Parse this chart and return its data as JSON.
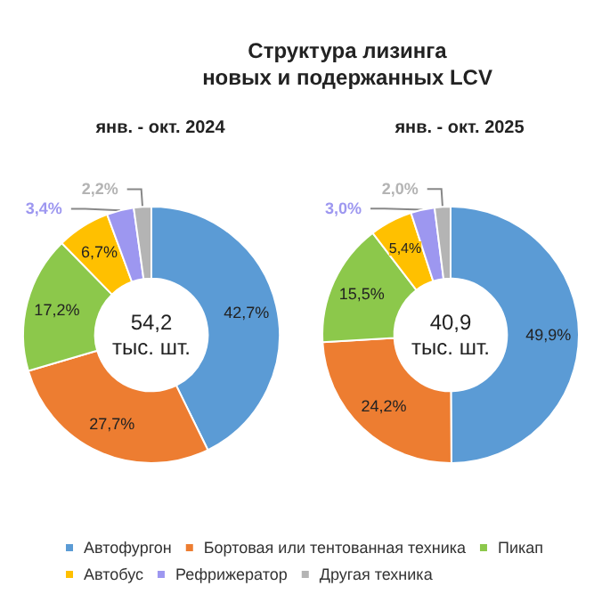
{
  "chart_data": {
    "type": "donut",
    "title": "Структура лизинга\nновых и подержанных LCV",
    "categories": [
      "Автофургон",
      "Бортовая или тентованная техника",
      "Пикап",
      "Автобус",
      "Рефрижератор",
      "Другая техника"
    ],
    "legend": "bottom",
    "annotations": [
      "54,2\nтыс. шт.",
      "40,9\nтыс. шт."
    ],
    "series": [
      {
        "name": "янв. - окт. 2024",
        "values": [
          42.7,
          27.7,
          17.2,
          6.7,
          3.4,
          2.2
        ],
        "value_labels": [
          "42,7%",
          "27,7%",
          "17,2%",
          "6,7%",
          "3,4%",
          "2,2%"
        ],
        "colors": [
          "#5b9bd5",
          "#ed7d31",
          "#8cc84b",
          "#ffc000",
          "#9d97f0",
          "#b4b4b4"
        ]
      },
      {
        "name": "янв. - окт. 2025",
        "values": [
          49.9,
          24.2,
          15.5,
          5.4,
          3.0,
          2.0
        ],
        "value_labels": [
          "49,9%",
          "24,2%",
          "15,5%",
          "5,4%",
          "3,0%",
          "2,0%"
        ],
        "colors": [
          "#5b9bd5",
          "#ed7d31",
          "#8cc84b",
          "#ffc000",
          "#9d97f0",
          "#b4b4b4"
        ]
      }
    ]
  }
}
